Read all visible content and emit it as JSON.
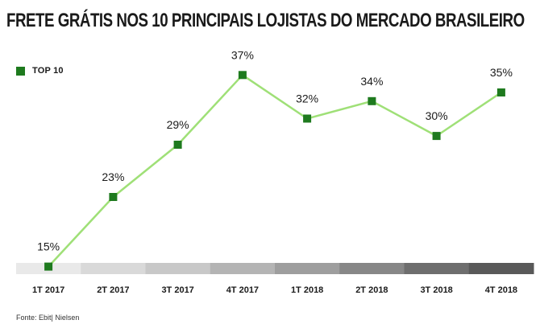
{
  "title": "FRETE GRÁTIS NOS 10 PRINCIPAIS LOJISTAS DO MERCADO BRASILEIRO",
  "source": "Fonte: Ebit| Nielsen",
  "colors": {
    "line": "#9fe077",
    "marker": "#1e7a1e",
    "band_shades": [
      "#e9e9e9",
      "#d9d9d9",
      "#c8c8c8",
      "#b4b4b4",
      "#9e9e9e",
      "#878787",
      "#6e6e6e",
      "#595959"
    ]
  },
  "chart_data": {
    "type": "line",
    "categories": [
      "1T 2017",
      "2T 2017",
      "3T 2017",
      "4T 2017",
      "1T 2018",
      "2T 2018",
      "3T 2018",
      "4T 2018"
    ],
    "series": [
      {
        "name": "TOP 10",
        "values": [
          15,
          23,
          29,
          37,
          32,
          34,
          30,
          35
        ],
        "labels": [
          "15%",
          "23%",
          "29%",
          "37%",
          "32%",
          "34%",
          "30%",
          "35%"
        ]
      }
    ],
    "title": "FRETE GRÁTIS NOS 10 PRINCIPAIS LOJISTAS DO MERCADO BRASILEIRO",
    "xlabel": "",
    "ylabel": "",
    "ylim": [
      10,
      40
    ],
    "grid": false,
    "legend_position": "top-left"
  }
}
